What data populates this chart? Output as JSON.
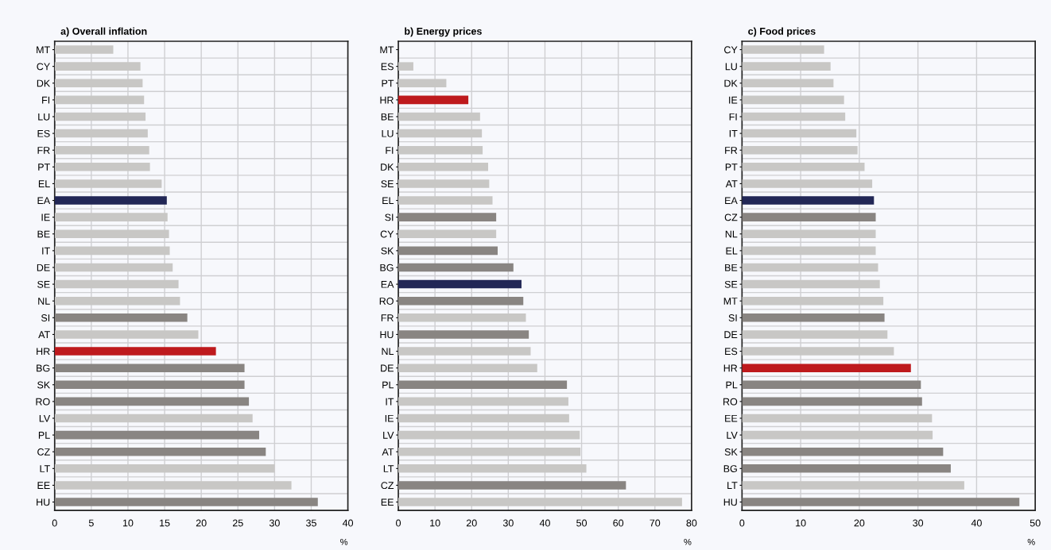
{
  "chart_data": [
    {
      "type": "bar",
      "orientation": "horizontal",
      "title": "a) Overall inflation",
      "xlabel": "%",
      "categories": [
        "MT",
        "CY",
        "DK",
        "FI",
        "LU",
        "ES",
        "FR",
        "PT",
        "EL",
        "EA",
        "IE",
        "BE",
        "IT",
        "DE",
        "SE",
        "NL",
        "SI",
        "AT",
        "HR",
        "BG",
        "SK",
        "RO",
        "LV",
        "PL",
        "CZ",
        "LT",
        "EE",
        "HU"
      ],
      "values": [
        8.0,
        11.7,
        12.0,
        12.2,
        12.4,
        12.7,
        12.9,
        13.0,
        14.6,
        15.3,
        15.4,
        15.6,
        15.7,
        16.1,
        16.9,
        17.1,
        18.1,
        19.6,
        22.0,
        25.9,
        25.9,
        26.5,
        27.0,
        27.9,
        28.8,
        30.0,
        32.3,
        35.9
      ],
      "colors": [
        "#c8c7c5",
        "#c8c7c5",
        "#c8c7c5",
        "#c8c7c5",
        "#c8c7c5",
        "#c8c7c5",
        "#c8c7c5",
        "#c8c7c5",
        "#c8c7c5",
        "#222756",
        "#c8c7c5",
        "#c8c7c5",
        "#c8c7c5",
        "#c8c7c5",
        "#c8c7c5",
        "#c8c7c5",
        "#898582",
        "#c8c7c5",
        "#be1a1d",
        "#898582",
        "#898582",
        "#898582",
        "#c8c7c5",
        "#898582",
        "#898582",
        "#c8c7c5",
        "#c8c7c5",
        "#898582"
      ],
      "xlim": [
        0,
        40
      ],
      "xticks": [
        0,
        5,
        10,
        15,
        20,
        25,
        30,
        35,
        40
      ],
      "grid": true,
      "legend": false
    },
    {
      "type": "bar",
      "orientation": "horizontal",
      "title": "b) Energy prices",
      "xlabel": "%",
      "categories": [
        "MT",
        "ES",
        "PT",
        "HR",
        "BE",
        "LU",
        "FI",
        "DK",
        "SE",
        "EL",
        "SI",
        "CY",
        "SK",
        "BG",
        "EA",
        "RO",
        "FR",
        "HU",
        "NL",
        "DE",
        "PL",
        "IT",
        "IE",
        "LV",
        "AT",
        "LT",
        "CZ",
        "EE"
      ],
      "values": [
        0,
        4.1,
        13.1,
        19.1,
        22.3,
        22.8,
        23.0,
        24.5,
        24.8,
        25.7,
        26.7,
        26.7,
        27.1,
        31.4,
        33.6,
        34.1,
        34.8,
        35.6,
        36.1,
        37.9,
        46.0,
        46.4,
        46.6,
        49.5,
        49.7,
        51.3,
        62.1,
        77.4
      ],
      "colors": [
        "#c8c7c5",
        "#c8c7c5",
        "#c8c7c5",
        "#be1a1d",
        "#c8c7c5",
        "#c8c7c5",
        "#c8c7c5",
        "#c8c7c5",
        "#c8c7c5",
        "#c8c7c5",
        "#898582",
        "#c8c7c5",
        "#898582",
        "#898582",
        "#222756",
        "#898582",
        "#c8c7c5",
        "#898582",
        "#c8c7c5",
        "#c8c7c5",
        "#898582",
        "#c8c7c5",
        "#c8c7c5",
        "#c8c7c5",
        "#c8c7c5",
        "#c8c7c5",
        "#898582",
        "#c8c7c5"
      ],
      "xlim": [
        0,
        80
      ],
      "xticks": [
        0,
        10,
        20,
        30,
        40,
        50,
        60,
        70,
        80
      ],
      "grid": true,
      "legend": false
    },
    {
      "type": "bar",
      "orientation": "horizontal",
      "title": "c) Food prices",
      "xlabel": "%",
      "categories": [
        "CY",
        "LU",
        "DK",
        "IE",
        "FI",
        "IT",
        "FR",
        "PT",
        "AT",
        "EA",
        "CZ",
        "NL",
        "EL",
        "BE",
        "SE",
        "MT",
        "SI",
        "DE",
        "ES",
        "HR",
        "PL",
        "RO",
        "EE",
        "LV",
        "SK",
        "BG",
        "LT",
        "HU"
      ],
      "values": [
        14.0,
        15.1,
        15.6,
        17.4,
        17.6,
        19.5,
        19.7,
        20.9,
        22.2,
        22.5,
        22.8,
        22.8,
        22.8,
        23.2,
        23.5,
        24.1,
        24.3,
        24.8,
        25.9,
        28.8,
        30.5,
        30.7,
        32.4,
        32.5,
        34.3,
        35.6,
        37.9,
        47.3
      ],
      "colors": [
        "#c8c7c5",
        "#c8c7c5",
        "#c8c7c5",
        "#c8c7c5",
        "#c8c7c5",
        "#c8c7c5",
        "#c8c7c5",
        "#c8c7c5",
        "#c8c7c5",
        "#222756",
        "#898582",
        "#c8c7c5",
        "#c8c7c5",
        "#c8c7c5",
        "#c8c7c5",
        "#c8c7c5",
        "#898582",
        "#c8c7c5",
        "#c8c7c5",
        "#be1a1d",
        "#898582",
        "#898582",
        "#c8c7c5",
        "#c8c7c5",
        "#898582",
        "#898582",
        "#c8c7c5",
        "#898582"
      ],
      "xlim": [
        0,
        50
      ],
      "xticks": [
        0,
        10,
        20,
        30,
        40,
        50
      ],
      "grid": true,
      "legend": false
    }
  ]
}
